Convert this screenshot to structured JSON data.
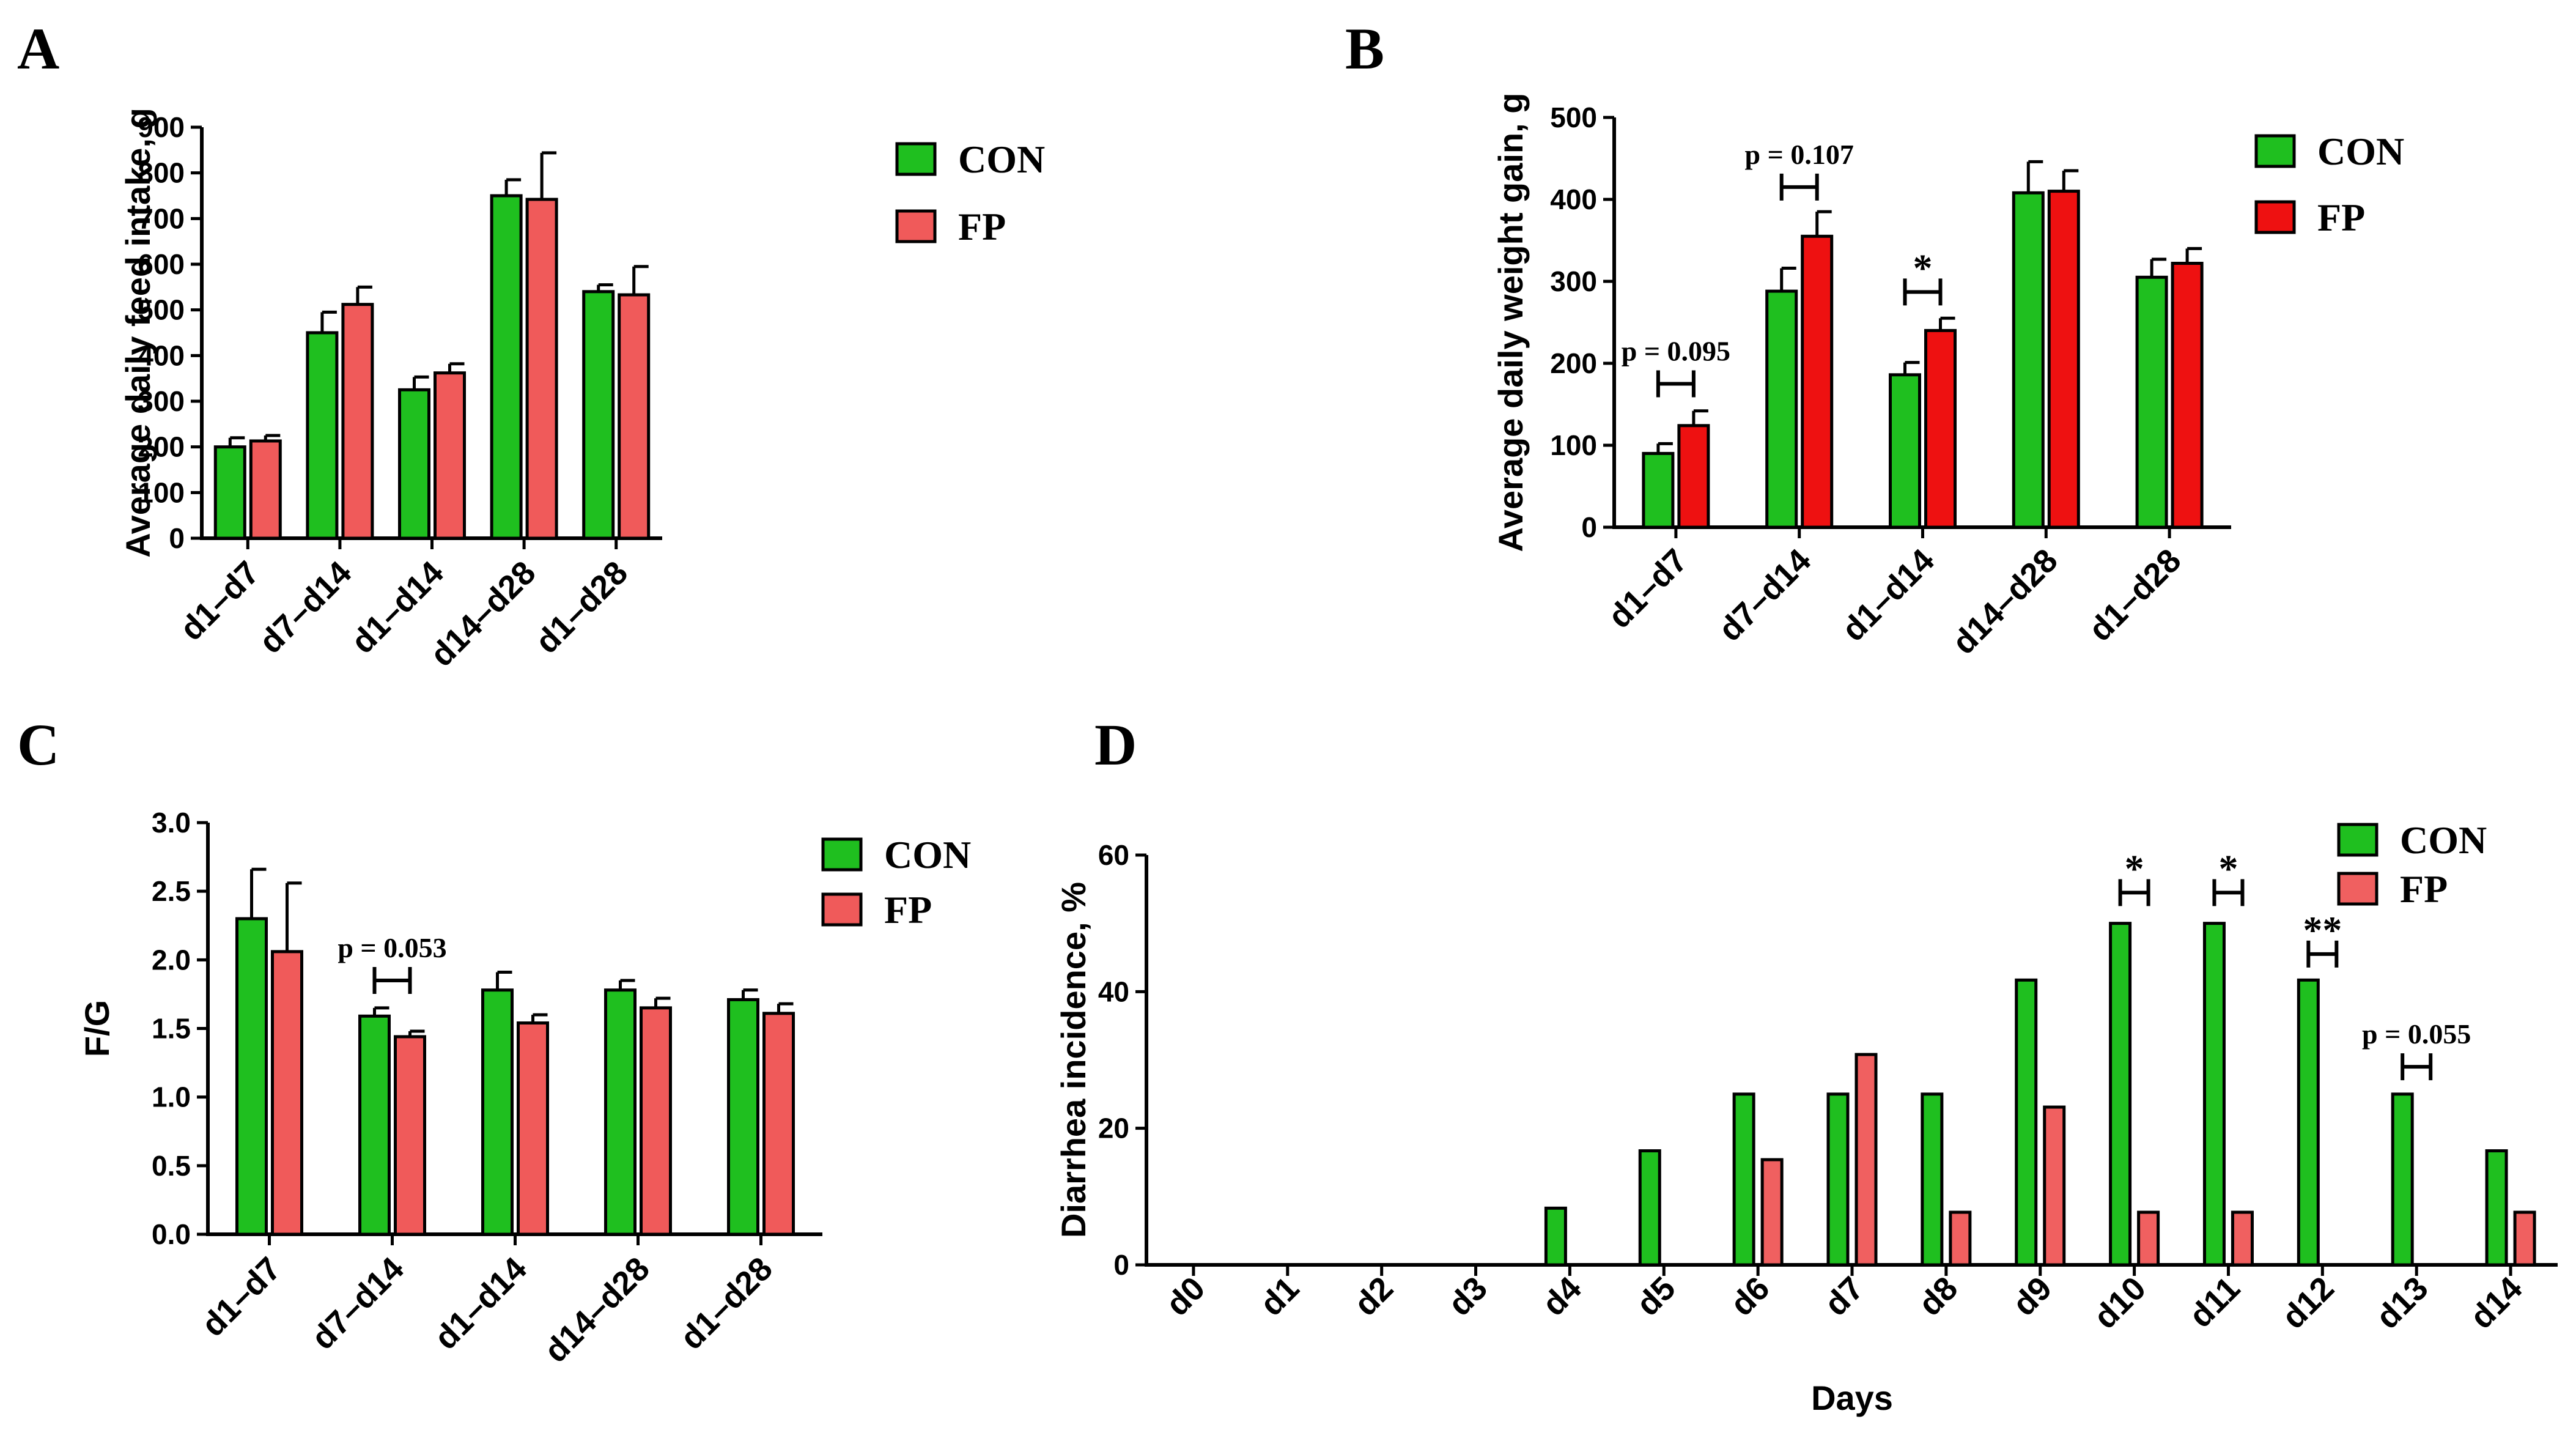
{
  "colors": {
    "CON": "#1fbf1f",
    "FP_A": "#f05a5a",
    "FP_B": "#ee1111",
    "FP_C": "#f05a5a",
    "FP_D": "#f06060"
  },
  "chart_data": [
    {
      "panel": "A",
      "type": "bar",
      "ylabel": "Average daily feed intake, g",
      "xlabel": "",
      "categories": [
        "d1–d7",
        "d7–d14",
        "d1–d14",
        "d14–d28",
        "d1–d28"
      ],
      "series": [
        {
          "name": "CON",
          "values": [
            200,
            450,
            325,
            750,
            540
          ],
          "errors": [
            20,
            45,
            28,
            35,
            15
          ]
        },
        {
          "name": "FP",
          "values": [
            213,
            512,
            362,
            742,
            533
          ],
          "errors": [
            12,
            38,
            20,
            102,
            62
          ]
        }
      ],
      "ylim": [
        0,
        900
      ],
      "yticks": [
        "0",
        "100",
        "200",
        "300",
        "400",
        "500",
        "600",
        "700",
        "800",
        "900"
      ],
      "ytick_values": [
        0,
        100,
        200,
        300,
        400,
        500,
        600,
        700,
        800,
        900
      ],
      "legend_position": "top-right",
      "annotations": []
    },
    {
      "panel": "B",
      "type": "bar",
      "ylabel": "Average daily weight gain, g",
      "xlabel": "",
      "categories": [
        "d1–d7",
        "d7–d14",
        "d1–d14",
        "d14–d28",
        "d1–d28"
      ],
      "series": [
        {
          "name": "CON",
          "values": [
            90,
            288,
            186,
            408,
            305
          ],
          "errors": [
            12,
            28,
            15,
            38,
            22
          ]
        },
        {
          "name": "FP",
          "values": [
            124,
            355,
            240,
            410,
            322
          ],
          "errors": [
            18,
            30,
            15,
            25,
            18
          ]
        }
      ],
      "ylim": [
        0,
        500
      ],
      "yticks": [
        "0",
        "100",
        "200",
        "300",
        "400",
        "500"
      ],
      "ytick_values": [
        0,
        100,
        200,
        300,
        400,
        500
      ],
      "legend_position": "top-right",
      "annotations": [
        {
          "category_index": 0,
          "text": "p = 0.095",
          "kind": "p",
          "y": 175
        },
        {
          "category_index": 1,
          "text": "p = 0.107",
          "kind": "p",
          "y": 415
        },
        {
          "category_index": 2,
          "text": "*",
          "kind": "star",
          "y": 287
        }
      ]
    },
    {
      "panel": "C",
      "type": "bar",
      "ylabel": "F/G",
      "xlabel": "",
      "categories": [
        "d1–d7",
        "d7–d14",
        "d1–d14",
        "d14–d28",
        "d1–d28"
      ],
      "series": [
        {
          "name": "CON",
          "values": [
            2.3,
            1.59,
            1.78,
            1.78,
            1.71
          ],
          "errors": [
            0.36,
            0.06,
            0.13,
            0.07,
            0.07
          ]
        },
        {
          "name": "FP",
          "values": [
            2.06,
            1.44,
            1.54,
            1.65,
            1.61
          ],
          "errors": [
            0.5,
            0.04,
            0.06,
            0.07,
            0.07
          ]
        }
      ],
      "ylim": [
        0,
        3.0
      ],
      "yticks": [
        "0.0",
        "0.5",
        "1.0",
        "1.5",
        "2.0",
        "2.5",
        "3.0"
      ],
      "ytick_values": [
        0,
        0.5,
        1.0,
        1.5,
        2.0,
        2.5,
        3.0
      ],
      "legend_position": "top-right",
      "annotations": [
        {
          "category_index": 1,
          "text": "p = 0.053",
          "kind": "p",
          "y": 1.85
        }
      ]
    },
    {
      "panel": "D",
      "type": "bar",
      "ylabel": "Diarrhea incidence, %",
      "xlabel": "Days",
      "categories": [
        "d0",
        "d1",
        "d2",
        "d3",
        "d4",
        "d5",
        "d6",
        "d7",
        "d8",
        "d9",
        "d10",
        "d11",
        "d12",
        "d13",
        "d14"
      ],
      "series": [
        {
          "name": "CON",
          "values": [
            0,
            0,
            0,
            0,
            8.3,
            16.7,
            25.0,
            25.0,
            25.0,
            41.7,
            50.0,
            50.0,
            41.7,
            25.0,
            16.7
          ],
          "errors": []
        },
        {
          "name": "FP",
          "values": [
            0,
            0,
            0,
            0,
            0,
            0,
            15.4,
            30.8,
            7.7,
            23.1,
            7.7,
            7.7,
            0,
            0,
            7.7
          ],
          "errors": []
        }
      ],
      "ylim": [
        0,
        60
      ],
      "yticks": [
        "0",
        "20",
        "40",
        "60"
      ],
      "ytick_values": [
        0,
        20,
        40,
        60
      ],
      "legend_position": "top-right",
      "annotations": [
        {
          "category_index": 10,
          "text": "*",
          "kind": "star",
          "y": 54.5
        },
        {
          "category_index": 11,
          "text": "*",
          "kind": "star",
          "y": 54.5
        },
        {
          "category_index": 12,
          "text": "**",
          "kind": "star",
          "y": 45.5
        },
        {
          "category_index": 13,
          "text": "p = 0.055",
          "kind": "p",
          "y": 29
        }
      ]
    }
  ]
}
